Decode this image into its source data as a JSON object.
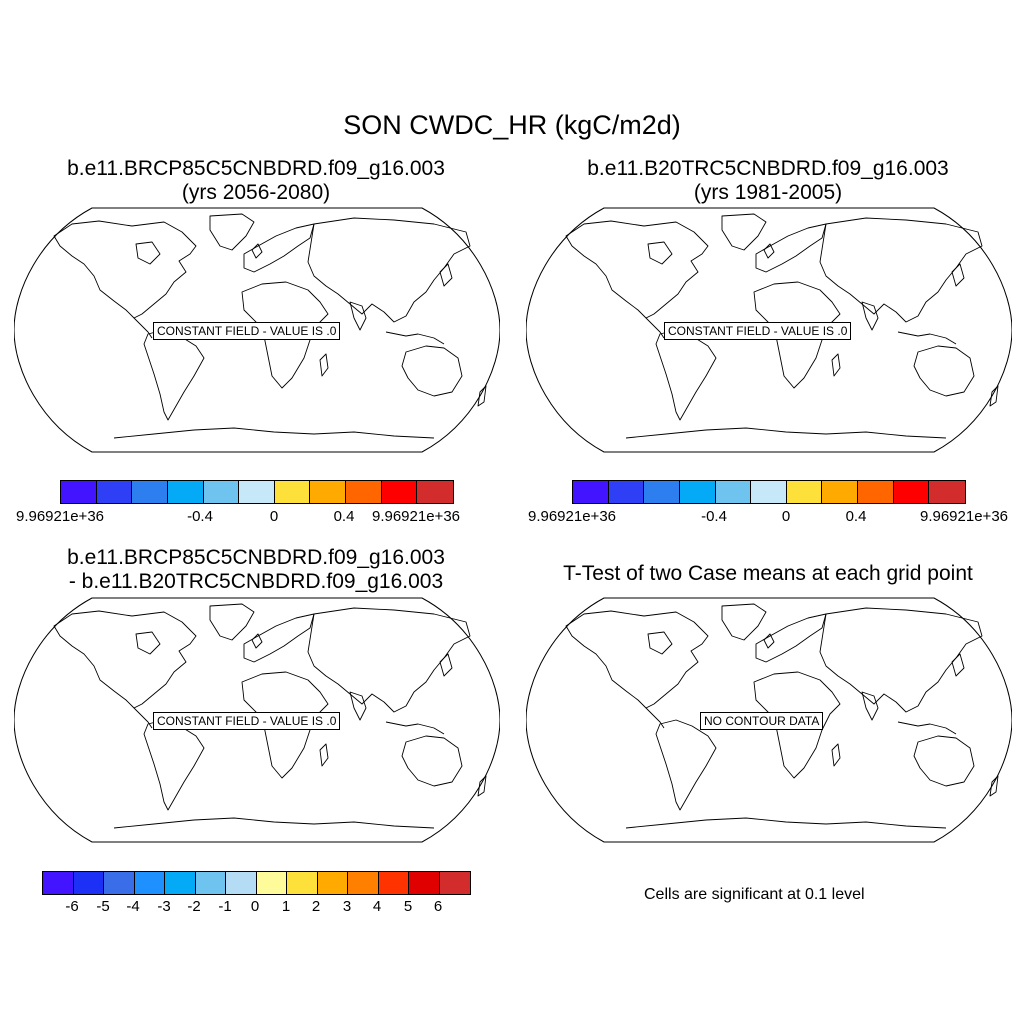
{
  "main_title": "SON CWDC_HR (kgC/m2d)",
  "panels": [
    {
      "title_line1": "b.e11.BRCP85C5CNBDRD.f09_g16.003",
      "title_line2": "(yrs 2056-2080)",
      "map_label": "CONSTANT FIELD - VALUE IS .0",
      "colorbar": {
        "colors": [
          "#4314ff",
          "#2f3ff5",
          "#2d7ff0",
          "#04aaf5",
          "#6ec4ee",
          "#c6e8f8",
          "#fde03a",
          "#ffaa00",
          "#ff6600",
          "#ff0000",
          "#d22c2c"
        ],
        "labels": [
          "9.96921e+36",
          "-0.4",
          "0",
          "0.4",
          "9.96921e+36"
        ]
      }
    },
    {
      "title_line1": "b.e11.B20TRC5CNBDRD.f09_g16.003",
      "title_line2": "(yrs 1981-2005)",
      "map_label": "CONSTANT FIELD - VALUE IS .0",
      "colorbar": {
        "colors": [
          "#4314ff",
          "#2f3ff5",
          "#2d7ff0",
          "#04aaf5",
          "#6ec4ee",
          "#c6e8f8",
          "#fde03a",
          "#ffaa00",
          "#ff6600",
          "#ff0000",
          "#d22c2c"
        ],
        "labels": [
          "9.96921e+36",
          "-0.4",
          "0",
          "0.4",
          "9.96921e+36"
        ]
      }
    },
    {
      "title_line1": "b.e11.BRCP85C5CNBDRD.f09_g16.003",
      "title_line2": "- b.e11.B20TRC5CNBDRD.f09_g16.003",
      "map_label": "CONSTANT FIELD - VALUE IS .0",
      "colorbar": {
        "colors": [
          "#4314ff",
          "#1c31f5",
          "#3a6ee8",
          "#1e90ff",
          "#04aaf5",
          "#6ec4ee",
          "#b4dcf4",
          "#fdfb9a",
          "#fde03a",
          "#ffaa00",
          "#ff7f00",
          "#ff3300",
          "#e00000",
          "#d22c2c"
        ],
        "labels": [
          "-6",
          "-5",
          "-4",
          "-3",
          "-2",
          "-1",
          "0",
          "1",
          "2",
          "3",
          "4",
          "5",
          "6"
        ]
      }
    },
    {
      "title_line1": "T-Test of two Case means at each grid point",
      "map_label": "NO CONTOUR DATA",
      "footnote": "Cells are significant at 0.1 level"
    }
  ]
}
